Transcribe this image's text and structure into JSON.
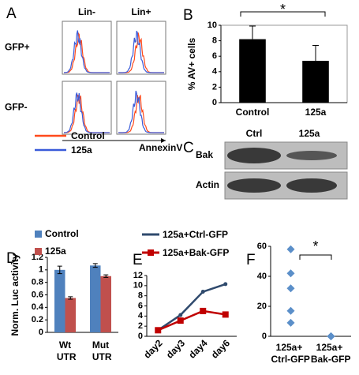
{
  "figure": {
    "panel_labels": [
      "A",
      "B",
      "C",
      "D",
      "E",
      "F"
    ],
    "flow": {
      "columns": [
        "Lin-",
        "Lin+"
      ],
      "rows": [
        "GFP+",
        "GFP-"
      ],
      "legend": [
        {
          "name": "Control",
          "color": "#ff4a1c"
        },
        {
          "name": "125a",
          "color": "#3a5bd9"
        }
      ],
      "xlabel": "AnnexinV"
    },
    "blot": {
      "lanes": [
        "Ctrl",
        "125a"
      ],
      "rows": [
        "Bak",
        "Actin"
      ]
    }
  },
  "chart_data": [
    {
      "type": "bar",
      "ylabel": "% AV+ cells",
      "categories": [
        "Control",
        "125a"
      ],
      "values": [
        8.2,
        5.4
      ],
      "errors": [
        1.7,
        2.0
      ],
      "color": "#000000",
      "ylim": [
        0,
        10
      ],
      "yticks": [
        0,
        2,
        4,
        6,
        8,
        10
      ],
      "annotation": "*"
    },
    {
      "type": "grouped-bar",
      "ylabel": "Norm. Luc activity",
      "categories": [
        "Wt UTR",
        "Mut UTR"
      ],
      "series": [
        {
          "name": "Control",
          "color": "#4f81bd",
          "values": [
            1.0,
            1.07
          ],
          "errors": [
            0.06,
            0.03
          ]
        },
        {
          "name": "125a",
          "color": "#c0504d",
          "values": [
            0.55,
            0.9
          ],
          "errors": [
            0.02,
            0.02
          ]
        }
      ],
      "ylim": [
        0,
        1.2
      ],
      "yticks": [
        0,
        0.2,
        0.4,
        0.6,
        0.8,
        1,
        1.2
      ]
    },
    {
      "type": "line",
      "categories": [
        "day2",
        "day3",
        "day4",
        "day6"
      ],
      "series": [
        {
          "name": "125a+Ctrl-GFP",
          "color": "#2f4a6d",
          "values": [
            1.2,
            4.2,
            8.8,
            10.3
          ]
        },
        {
          "name": "125a+Bak-GFP",
          "color": "#c00000",
          "values": [
            1.2,
            3.1,
            5.0,
            4.3
          ]
        }
      ],
      "ylim": [
        0,
        12
      ],
      "yticks": [
        0,
        2,
        4,
        6,
        8,
        10,
        12
      ]
    },
    {
      "type": "scatter",
      "categories": [
        "125a+ Ctrl-GFP",
        "125a+ Bak-GFP"
      ],
      "values": [
        [
          58,
          42,
          32,
          17,
          9
        ],
        [
          0,
          0,
          0
        ]
      ],
      "color": "#5b8fc9",
      "ylim": [
        0,
        60
      ],
      "yticks": [
        0,
        20,
        40,
        60
      ],
      "annotation": "*"
    }
  ]
}
